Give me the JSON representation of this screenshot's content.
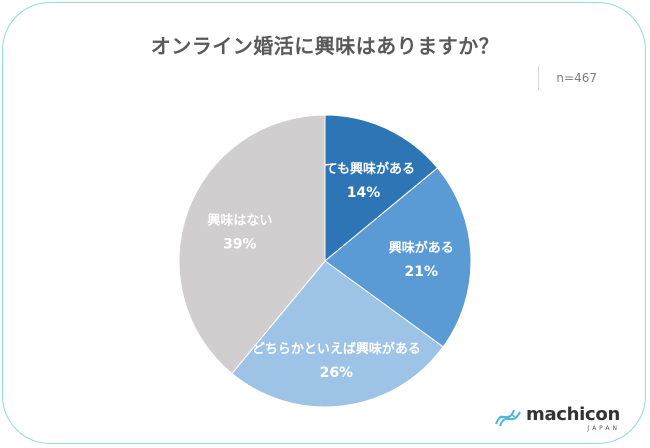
{
  "title": "オンライン婚活に興味はありますか？",
  "sample_size": "n=467",
  "brand": {
    "name": "machicon",
    "sub": "JAPAN"
  },
  "colors": {
    "slice1": "#2e75b6",
    "slice2": "#5b9bd5",
    "slice3": "#9dc3e6",
    "slice4": "#d0cece",
    "border": "#8fdbe3"
  },
  "chart_data": {
    "type": "pie",
    "title": "オンライン婚活に興味はありますか？",
    "slices": [
      {
        "label": "とても興味がある",
        "value": 14,
        "display": "14%"
      },
      {
        "label": "興味がある",
        "value": 21,
        "display": "21%"
      },
      {
        "label": "どちらかといえば興味がある",
        "value": 26,
        "display": "26%"
      },
      {
        "label": "興味はない",
        "value": 39,
        "display": "39%"
      }
    ]
  }
}
